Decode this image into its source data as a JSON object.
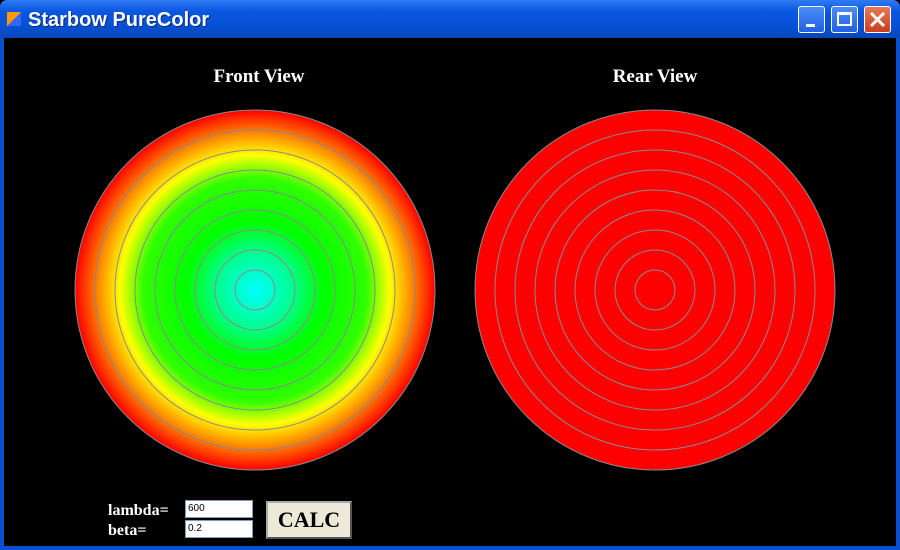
{
  "window": {
    "title": "Starbow PureColor"
  },
  "views": [
    {
      "label": "Front View"
    },
    {
      "label": "Rear View"
    }
  ],
  "form": {
    "lambda_label": "lambda=",
    "lambda_value": "600",
    "beta_label": "beta=",
    "beta_value": "0.2",
    "button": "CALC"
  }
}
